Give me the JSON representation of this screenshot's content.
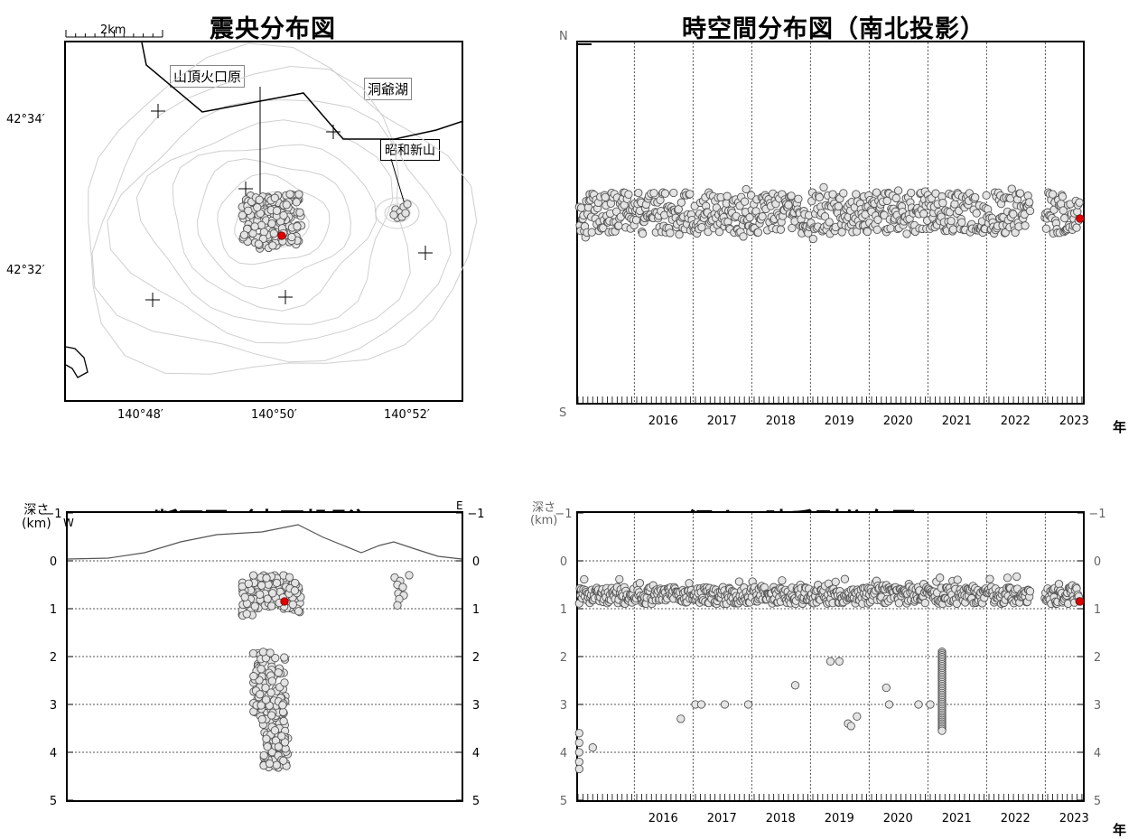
{
  "chart_data": [
    {
      "type": "scatter",
      "title": "震央分布図",
      "scale_label": "2km",
      "map_labels": [
        "山頂火口原",
        "洞爺湖",
        "昭和新山"
      ],
      "x_ticks": [
        "140°48′",
        "140°50′",
        "140°52′"
      ],
      "y_ticks": [
        "42°34′",
        "42°32′"
      ],
      "clusters": [
        {
          "name": "summit",
          "lon_range": [
            140.825,
            140.84
          ],
          "lat_range": [
            42.5375,
            42.545
          ],
          "count": 170
        },
        {
          "name": "showa-shinzan",
          "lon_range": [
            140.865,
            140.868
          ],
          "lat_range": [
            42.542,
            42.546
          ],
          "count": 8
        }
      ],
      "latest_event": {
        "lon": 140.8375,
        "lat": 42.5425,
        "color": "#e00000"
      }
    },
    {
      "type": "scatter",
      "title": "時空間分布図（南北投影）",
      "axis_top": "N",
      "axis_bottom": "S",
      "year_label": "年",
      "year_ticks": [
        "2016",
        "2017",
        "2018",
        "2019",
        "2020",
        "2021",
        "2022",
        "2023"
      ],
      "x_range": [
        2015.0,
        2023.6
      ],
      "latest_event": {
        "x": 2023.55,
        "color": "#e00000"
      }
    },
    {
      "type": "scatter",
      "title": "断面図（東西投影）",
      "ylabel": "深さ\n(km)",
      "west_label": "W",
      "east_label": "E",
      "y_ticks": [
        "−1",
        "0",
        "1",
        "2",
        "3",
        "4",
        "5"
      ],
      "ylim": [
        -1,
        5
      ],
      "clusters": [
        {
          "name": "shallow-summit",
          "depth_range": [
            0.3,
            1.1
          ],
          "count": 140
        },
        {
          "name": "deep-summit",
          "depth_range": [
            1.9,
            4.4
          ],
          "count": 180
        },
        {
          "name": "showa-shinzan",
          "depth_range": [
            0.3,
            0.95
          ],
          "count": 9
        }
      ],
      "latest_event": {
        "depth": 0.85,
        "color": "#e00000"
      }
    },
    {
      "type": "scatter",
      "title": "深さの時系列分布図",
      "ylabel": "深さ\n(km)",
      "year_label": "年",
      "y_ticks": [
        "−1",
        "0",
        "1",
        "2",
        "3",
        "4",
        "5"
      ],
      "ylim": [
        -1,
        5
      ],
      "year_ticks": [
        "2016",
        "2017",
        "2018",
        "2019",
        "2020",
        "2021",
        "2022",
        "2023"
      ],
      "x_range": [
        2015.0,
        2023.6
      ],
      "shallow_band_depth": [
        0.3,
        1.1
      ],
      "deep_events": [
        {
          "x": 2015.02,
          "y": 3.6
        },
        {
          "x": 2015.02,
          "y": 3.8
        },
        {
          "x": 2015.02,
          "y": 4.0
        },
        {
          "x": 2015.02,
          "y": 4.2
        },
        {
          "x": 2015.02,
          "y": 4.35
        },
        {
          "x": 2015.25,
          "y": 3.9
        },
        {
          "x": 2016.75,
          "y": 3.3
        },
        {
          "x": 2017.0,
          "y": 3.0
        },
        {
          "x": 2017.1,
          "y": 3.0
        },
        {
          "x": 2017.5,
          "y": 3.0
        },
        {
          "x": 2017.9,
          "y": 3.0
        },
        {
          "x": 2018.7,
          "y": 2.6
        },
        {
          "x": 2019.3,
          "y": 2.1
        },
        {
          "x": 2019.45,
          "y": 2.1
        },
        {
          "x": 2019.6,
          "y": 3.4
        },
        {
          "x": 2019.65,
          "y": 3.45
        },
        {
          "x": 2019.75,
          "y": 3.25
        },
        {
          "x": 2020.25,
          "y": 2.65
        },
        {
          "x": 2020.3,
          "y": 3.0
        },
        {
          "x": 2020.8,
          "y": 3.0
        },
        {
          "x": 2021.0,
          "y": 3.0
        }
      ],
      "swarm_2021": {
        "x": 2021.2,
        "depth_range": [
          1.9,
          3.55
        ],
        "count": 45
      },
      "latest_event": {
        "x": 2023.55,
        "y": 0.85,
        "color": "#e00000"
      }
    }
  ]
}
